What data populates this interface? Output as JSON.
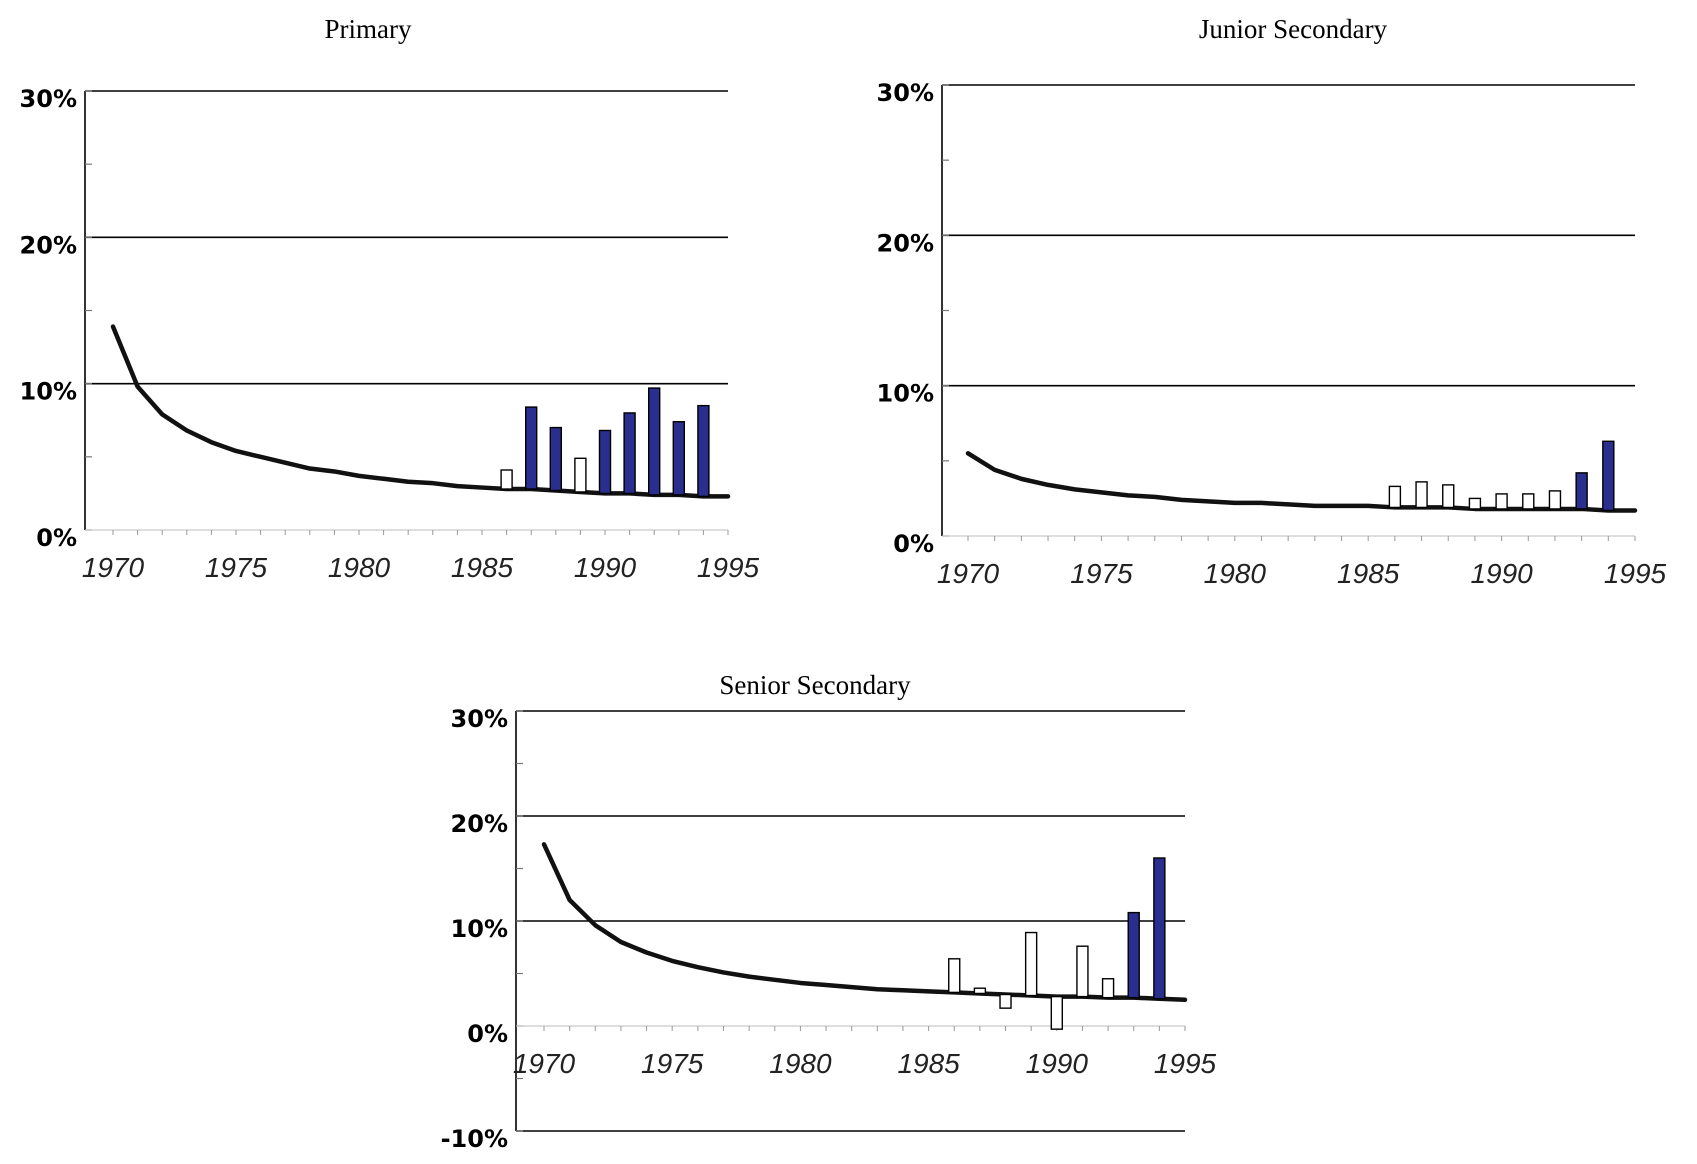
{
  "colors": {
    "filled_bar": "#2a2f8f",
    "outline_bar": "#000000",
    "trend_line": "#111111",
    "grid": "#000000",
    "background": "#ffffff"
  },
  "chart_data": [
    {
      "type": "bar",
      "title": "Primary",
      "xlabel": "",
      "ylabel": "",
      "xlim": [
        1970,
        1995
      ],
      "ylim": [
        0,
        30
      ],
      "x_ticks": [
        "1970",
        "1975",
        "1980",
        "1985",
        "1990",
        "1995"
      ],
      "y_ticks": [
        "0%",
        "10%",
        "20%",
        "30%"
      ],
      "grid": "horizontal at 10%, 20%, 30%",
      "trend_line": {
        "x": [
          1970,
          1971,
          1972,
          1973,
          1974,
          1975,
          1976,
          1977,
          1978,
          1979,
          1980,
          1981,
          1982,
          1983,
          1984,
          1985,
          1986,
          1987,
          1988,
          1989,
          1990,
          1991,
          1992,
          1993,
          1994,
          1995
        ],
        "y": [
          13.9,
          9.8,
          7.9,
          6.8,
          6.0,
          5.4,
          5.0,
          4.6,
          4.2,
          4.0,
          3.7,
          3.5,
          3.3,
          3.2,
          3.0,
          2.9,
          2.8,
          2.8,
          2.7,
          2.6,
          2.5,
          2.5,
          2.4,
          2.4,
          2.3,
          2.3
        ]
      },
      "bars": [
        {
          "x": 1986,
          "y": 4.1,
          "filled": false
        },
        {
          "x": 1987,
          "y": 8.4,
          "filled": true
        },
        {
          "x": 1988,
          "y": 7.0,
          "filled": true
        },
        {
          "x": 1989,
          "y": 4.9,
          "filled": false
        },
        {
          "x": 1990,
          "y": 6.8,
          "filled": true
        },
        {
          "x": 1991,
          "y": 8.0,
          "filled": true
        },
        {
          "x": 1992,
          "y": 9.7,
          "filled": true
        },
        {
          "x": 1993,
          "y": 7.4,
          "filled": true
        },
        {
          "x": 1994,
          "y": 8.5,
          "filled": true
        }
      ]
    },
    {
      "type": "bar",
      "title": "Junior Secondary",
      "xlabel": "",
      "ylabel": "",
      "xlim": [
        1970,
        1995
      ],
      "ylim": [
        0,
        30
      ],
      "x_ticks": [
        "1970",
        "1975",
        "1980",
        "1985",
        "1990",
        "1995"
      ],
      "y_ticks": [
        "0%",
        "10%",
        "20%",
        "30%"
      ],
      "grid": "horizontal at 10%, 20%, 30%",
      "trend_line": {
        "x": [
          1970,
          1971,
          1972,
          1973,
          1974,
          1975,
          1976,
          1977,
          1978,
          1979,
          1980,
          1981,
          1982,
          1983,
          1984,
          1985,
          1986,
          1987,
          1988,
          1989,
          1990,
          1991,
          1992,
          1993,
          1994,
          1995
        ],
        "y": [
          5.5,
          4.4,
          3.8,
          3.4,
          3.1,
          2.9,
          2.7,
          2.6,
          2.4,
          2.3,
          2.2,
          2.2,
          2.1,
          2.0,
          2.0,
          2.0,
          1.9,
          1.9,
          1.9,
          1.8,
          1.8,
          1.8,
          1.8,
          1.8,
          1.7,
          1.7
        ]
      },
      "bars": [
        {
          "x": 1986,
          "y": 3.3,
          "filled": false
        },
        {
          "x": 1987,
          "y": 3.6,
          "filled": false
        },
        {
          "x": 1988,
          "y": 3.4,
          "filled": false
        },
        {
          "x": 1989,
          "y": 2.5,
          "filled": false
        },
        {
          "x": 1990,
          "y": 2.8,
          "filled": false
        },
        {
          "x": 1991,
          "y": 2.8,
          "filled": false
        },
        {
          "x": 1992,
          "y": 3.0,
          "filled": false
        },
        {
          "x": 1993,
          "y": 4.2,
          "filled": true
        },
        {
          "x": 1994,
          "y": 6.3,
          "filled": true
        }
      ]
    },
    {
      "type": "bar",
      "title": "Senior Secondary",
      "xlabel": "",
      "ylabel": "",
      "xlim": [
        1970,
        1995
      ],
      "ylim": [
        -10,
        30
      ],
      "x_ticks": [
        "1970",
        "1975",
        "1980",
        "1985",
        "1990",
        "1995"
      ],
      "y_ticks": [
        "-10%",
        "0%",
        "10%",
        "20%",
        "30%"
      ],
      "grid": "horizontal at -10%, 10%, 20%, 30%",
      "trend_line": {
        "x": [
          1970,
          1971,
          1972,
          1973,
          1974,
          1975,
          1976,
          1977,
          1978,
          1979,
          1980,
          1981,
          1982,
          1983,
          1984,
          1985,
          1986,
          1987,
          1988,
          1989,
          1990,
          1991,
          1992,
          1993,
          1994,
          1995
        ],
        "y": [
          17.3,
          12.0,
          9.6,
          8.0,
          7.0,
          6.2,
          5.6,
          5.1,
          4.7,
          4.4,
          4.1,
          3.9,
          3.7,
          3.5,
          3.4,
          3.3,
          3.2,
          3.1,
          3.0,
          2.9,
          2.8,
          2.8,
          2.7,
          2.7,
          2.6,
          2.5
        ]
      },
      "bars": [
        {
          "x": 1986,
          "y": 6.4,
          "filled": false
        },
        {
          "x": 1987,
          "y": 3.6,
          "filled": false
        },
        {
          "x": 1988,
          "y": 1.7,
          "filled": false
        },
        {
          "x": 1989,
          "y": 8.9,
          "filled": false
        },
        {
          "x": 1990,
          "y": -0.3,
          "filled": false
        },
        {
          "x": 1991,
          "y": 7.6,
          "filled": false
        },
        {
          "x": 1992,
          "y": 4.5,
          "filled": false
        },
        {
          "x": 1993,
          "y": 10.8,
          "filled": true
        },
        {
          "x": 1994,
          "y": 16.0,
          "filled": true
        }
      ]
    }
  ]
}
